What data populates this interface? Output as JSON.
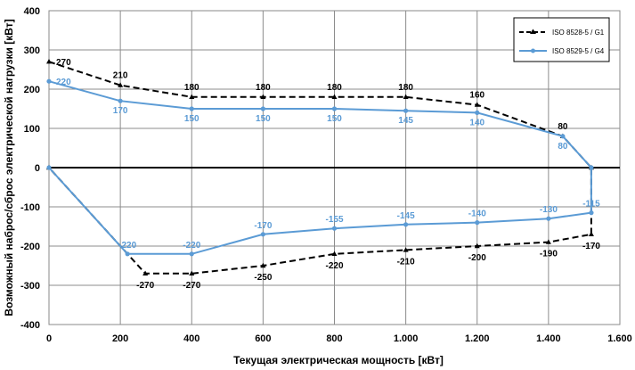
{
  "chart_data": {
    "type": "line",
    "xlabel": "Текущая электрическая мощность [кВт]",
    "ylabel": "Возможный наброс/сброс электрической нагрузки [кВт]",
    "xlim": [
      0,
      1600
    ],
    "ylim": [
      -400,
      400
    ],
    "x_ticks": [
      0,
      200,
      400,
      600,
      800,
      1000,
      1200,
      1400,
      1600
    ],
    "x_tick_labels": [
      "0",
      "200",
      "400",
      "600",
      "800",
      "1.000",
      "1.200",
      "1.400",
      "1.600"
    ],
    "y_ticks": [
      400,
      300,
      200,
      100,
      0,
      -100,
      -200,
      -300,
      -400
    ],
    "y_tick_labels": [
      "400",
      "300",
      "200",
      "100",
      "0",
      "-100",
      "-200",
      "-300",
      "-400"
    ],
    "grid": true,
    "legend_position": "top-right",
    "series": [
      {
        "name": "ISO 8528-5 / G1",
        "color": "#000000",
        "style": "dashed",
        "points": [
          [
            0,
            270
          ],
          [
            200,
            210
          ],
          [
            400,
            180
          ],
          [
            600,
            180
          ],
          [
            800,
            180
          ],
          [
            1000,
            180
          ],
          [
            1200,
            160
          ],
          [
            1440,
            80
          ],
          [
            1520,
            0
          ],
          [
            1520,
            -170
          ],
          [
            1400,
            -190
          ],
          [
            1200,
            -200
          ],
          [
            1000,
            -210
          ],
          [
            800,
            -220
          ],
          [
            600,
            -250
          ],
          [
            400,
            -270
          ],
          [
            270,
            -270
          ],
          [
            0,
            0
          ]
        ],
        "labels": [
          {
            "x": 0,
            "y": 270,
            "text": "270"
          },
          {
            "x": 200,
            "y": 210,
            "text": "210"
          },
          {
            "x": 400,
            "y": 180,
            "text": "180"
          },
          {
            "x": 600,
            "y": 180,
            "text": "180"
          },
          {
            "x": 800,
            "y": 180,
            "text": "180"
          },
          {
            "x": 1000,
            "y": 180,
            "text": "180"
          },
          {
            "x": 1200,
            "y": 160,
            "text": "160"
          },
          {
            "x": 1440,
            "y": 80,
            "text": "80"
          },
          {
            "x": 1520,
            "y": -170,
            "text": "-170"
          },
          {
            "x": 1400,
            "y": -190,
            "text": "-190"
          },
          {
            "x": 1200,
            "y": -200,
            "text": "-200"
          },
          {
            "x": 1000,
            "y": -210,
            "text": "-210"
          },
          {
            "x": 800,
            "y": -220,
            "text": "-220"
          },
          {
            "x": 600,
            "y": -250,
            "text": "-250"
          },
          {
            "x": 400,
            "y": -270,
            "text": "-270"
          },
          {
            "x": 270,
            "y": -270,
            "text": "-270"
          }
        ]
      },
      {
        "name": "ISO 8529-5 / G4",
        "color": "#5b9bd5",
        "style": "solid",
        "points": [
          [
            0,
            220
          ],
          [
            200,
            170
          ],
          [
            400,
            150
          ],
          [
            600,
            150
          ],
          [
            800,
            150
          ],
          [
            1000,
            145
          ],
          [
            1200,
            140
          ],
          [
            1440,
            80
          ],
          [
            1520,
            0
          ],
          [
            1520,
            -115
          ],
          [
            1400,
            -130
          ],
          [
            1200,
            -140
          ],
          [
            1000,
            -145
          ],
          [
            800,
            -155
          ],
          [
            600,
            -170
          ],
          [
            400,
            -220
          ],
          [
            220,
            -220
          ],
          [
            0,
            0
          ]
        ],
        "labels": [
          {
            "x": 0,
            "y": 220,
            "text": "220"
          },
          {
            "x": 200,
            "y": 170,
            "text": "170"
          },
          {
            "x": 400,
            "y": 150,
            "text": "150"
          },
          {
            "x": 600,
            "y": 150,
            "text": "150"
          },
          {
            "x": 800,
            "y": 150,
            "text": "150"
          },
          {
            "x": 1000,
            "y": 145,
            "text": "145"
          },
          {
            "x": 1200,
            "y": 140,
            "text": "140"
          },
          {
            "x": 1440,
            "y": 80,
            "text": "80"
          },
          {
            "x": 1520,
            "y": -115,
            "text": "-115"
          },
          {
            "x": 1400,
            "y": -130,
            "text": "-130"
          },
          {
            "x": 1200,
            "y": -140,
            "text": "-140"
          },
          {
            "x": 1000,
            "y": -145,
            "text": "-145"
          },
          {
            "x": 800,
            "y": -155,
            "text": "-155"
          },
          {
            "x": 600,
            "y": -170,
            "text": "-170"
          },
          {
            "x": 400,
            "y": -220,
            "text": "-220"
          },
          {
            "x": 220,
            "y": -220,
            "text": "-220"
          }
        ]
      }
    ]
  }
}
